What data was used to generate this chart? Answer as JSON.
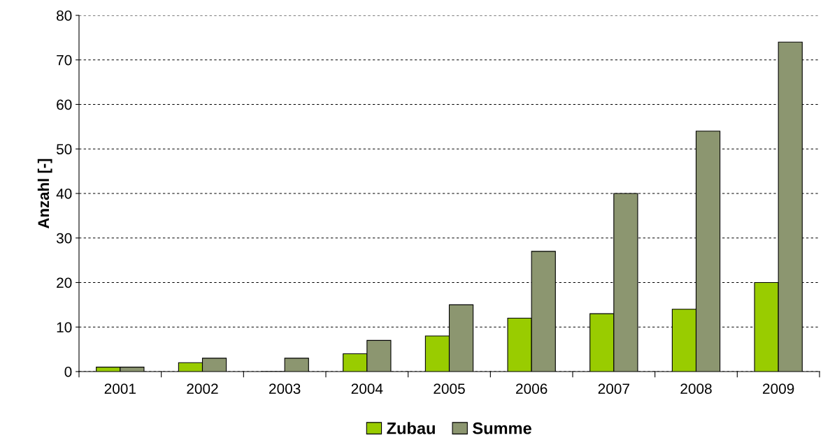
{
  "chart_data": {
    "type": "bar",
    "ylabel": "Anzahl [-]",
    "categories": [
      "2001",
      "2002",
      "2003",
      "2004",
      "2005",
      "2006",
      "2007",
      "2008",
      "2009"
    ],
    "series": [
      {
        "name": "Zubau",
        "color": "#99cc00",
        "values": [
          1,
          2,
          0,
          4,
          8,
          12,
          13,
          14,
          20
        ]
      },
      {
        "name": "Summe",
        "color": "#8c9670",
        "values": [
          1,
          3,
          3,
          7,
          15,
          27,
          40,
          54,
          74
        ]
      }
    ],
    "ylim": [
      0,
      80
    ],
    "yticks": [
      0,
      10,
      20,
      30,
      40,
      50,
      60,
      70,
      80
    ],
    "grid": "y",
    "legend": "bottom"
  }
}
